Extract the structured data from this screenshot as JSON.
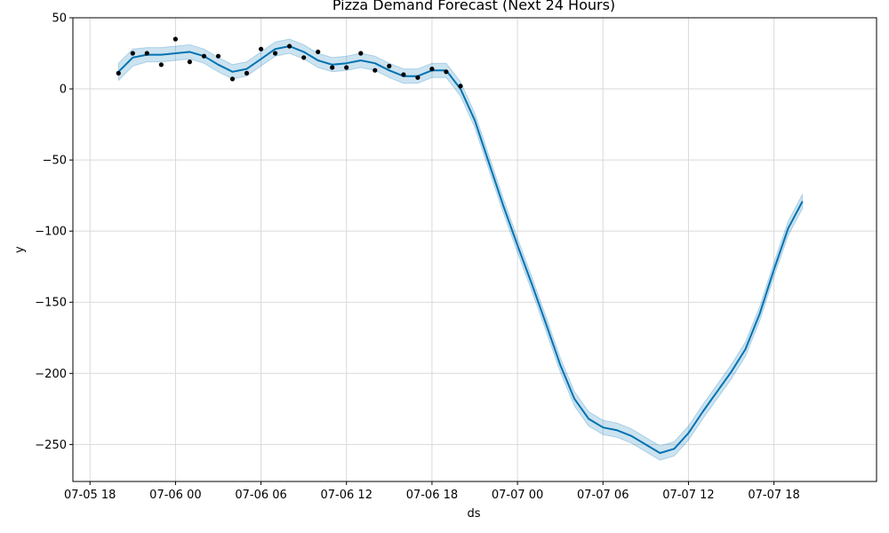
{
  "chart_data": {
    "type": "line",
    "title": "Pizza Demand Forecast (Next 24 Hours)",
    "xlabel": "ds",
    "ylabel": "y",
    "xlim": [
      "2023-07-05 16:48",
      "2023-07-08 01:12"
    ],
    "ylim": [
      -276,
      50
    ],
    "grid": true,
    "x_ticks": [
      {
        "value": "2023-07-05 18:00",
        "label": "07-05 18"
      },
      {
        "value": "2023-07-06 00:00",
        "label": "07-06 00"
      },
      {
        "value": "2023-07-06 06:00",
        "label": "07-06 06"
      },
      {
        "value": "2023-07-06 12:00",
        "label": "07-06 12"
      },
      {
        "value": "2023-07-06 18:00",
        "label": "07-06 18"
      },
      {
        "value": "2023-07-07 00:00",
        "label": "07-07 00"
      },
      {
        "value": "2023-07-07 06:00",
        "label": "07-07 06"
      },
      {
        "value": "2023-07-07 12:00",
        "label": "07-07 12"
      },
      {
        "value": "2023-07-07 18:00",
        "label": "07-07 18"
      }
    ],
    "y_ticks": [
      {
        "value": 50,
        "label": "50"
      },
      {
        "value": 0,
        "label": "0"
      },
      {
        "value": -50,
        "label": "−50"
      },
      {
        "value": -100,
        "label": "−100"
      },
      {
        "value": -150,
        "label": "−150"
      },
      {
        "value": -200,
        "label": "−200"
      },
      {
        "value": -250,
        "label": "−250"
      }
    ],
    "observed": {
      "x": [
        "2023-07-05 20:00",
        "2023-07-05 21:00",
        "2023-07-05 22:00",
        "2023-07-05 23:00",
        "2023-07-06 00:00",
        "2023-07-06 01:00",
        "2023-07-06 02:00",
        "2023-07-06 03:00",
        "2023-07-06 04:00",
        "2023-07-06 05:00",
        "2023-07-06 06:00",
        "2023-07-06 07:00",
        "2023-07-06 08:00",
        "2023-07-06 09:00",
        "2023-07-06 10:00",
        "2023-07-06 11:00",
        "2023-07-06 12:00",
        "2023-07-06 13:00",
        "2023-07-06 14:00",
        "2023-07-06 15:00",
        "2023-07-06 16:00",
        "2023-07-06 17:00",
        "2023-07-06 18:00",
        "2023-07-06 19:00",
        "2023-07-06 20:00"
      ],
      "y": [
        11,
        25,
        25,
        17,
        35,
        19,
        23,
        23,
        7,
        11,
        28,
        25,
        30,
        22,
        26,
        15,
        15,
        25,
        13,
        16,
        10,
        8,
        14,
        12,
        2
      ],
      "color": "#000000"
    },
    "forecast": {
      "x": [
        "2023-07-05 20:00",
        "2023-07-05 21:00",
        "2023-07-05 22:00",
        "2023-07-05 23:00",
        "2023-07-06 00:00",
        "2023-07-06 01:00",
        "2023-07-06 02:00",
        "2023-07-06 03:00",
        "2023-07-06 04:00",
        "2023-07-06 05:00",
        "2023-07-06 06:00",
        "2023-07-06 07:00",
        "2023-07-06 08:00",
        "2023-07-06 09:00",
        "2023-07-06 10:00",
        "2023-07-06 11:00",
        "2023-07-06 12:00",
        "2023-07-06 13:00",
        "2023-07-06 14:00",
        "2023-07-06 15:00",
        "2023-07-06 16:00",
        "2023-07-06 17:00",
        "2023-07-06 18:00",
        "2023-07-06 19:00",
        "2023-07-06 20:00",
        "2023-07-06 21:00",
        "2023-07-06 22:00",
        "2023-07-06 23:00",
        "2023-07-07 00:00",
        "2023-07-07 01:00",
        "2023-07-07 02:00",
        "2023-07-07 03:00",
        "2023-07-07 04:00",
        "2023-07-07 05:00",
        "2023-07-07 06:00",
        "2023-07-07 07:00",
        "2023-07-07 08:00",
        "2023-07-07 09:00",
        "2023-07-07 10:00",
        "2023-07-07 11:00",
        "2023-07-07 12:00",
        "2023-07-07 13:00",
        "2023-07-07 14:00",
        "2023-07-07 15:00",
        "2023-07-07 16:00",
        "2023-07-07 17:00",
        "2023-07-07 18:00",
        "2023-07-07 19:00",
        "2023-07-07 20:00"
      ],
      "yhat": [
        12,
        22,
        24,
        24,
        25,
        26,
        23,
        17,
        12,
        14,
        21,
        28,
        30,
        26,
        20,
        17,
        18,
        20,
        18,
        13,
        9,
        9,
        13,
        13,
        0,
        -22,
        -52,
        -82,
        -110,
        -137,
        -165,
        -194,
        -218,
        -232,
        -238,
        -240,
        -244,
        -250,
        -256,
        -253,
        -242,
        -227,
        -213,
        -199,
        -183,
        -158,
        -127,
        -98,
        -79
      ],
      "lower": [
        6,
        16,
        19,
        19,
        20,
        21,
        18,
        12,
        7,
        9,
        16,
        23,
        25,
        21,
        15,
        12,
        13,
        15,
        13,
        8,
        4,
        4,
        8,
        8,
        -5,
        -27,
        -57,
        -87,
        -115,
        -142,
        -170,
        -199,
        -223,
        -237,
        -243,
        -245,
        -249,
        -255,
        -261,
        -258,
        -247,
        -232,
        -218,
        -204,
        -188,
        -163,
        -132,
        -103,
        -84
      ],
      "upper": [
        18,
        28,
        29,
        29,
        30,
        31,
        28,
        22,
        17,
        19,
        26,
        33,
        35,
        31,
        25,
        22,
        23,
        25,
        23,
        18,
        14,
        14,
        18,
        18,
        5,
        -17,
        -47,
        -77,
        -105,
        -132,
        -160,
        -189,
        -213,
        -227,
        -233,
        -235,
        -239,
        -245,
        -251,
        -248,
        -237,
        -222,
        -208,
        -194,
        -178,
        -153,
        -122,
        -93,
        -74
      ],
      "line_color": "#0072B2",
      "band_color": "#0072B2"
    }
  }
}
